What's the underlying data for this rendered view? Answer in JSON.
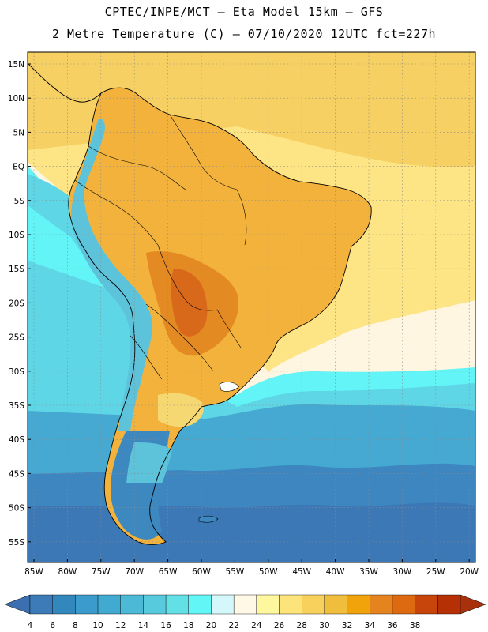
{
  "title_line1": "CPTEC/INPE/MCT –  Eta Model 15km – GFS",
  "title_line2": "2 Metre Temperature (C) – 07/10/2020 12UTC fct=227h",
  "lat_labels": [
    "15N",
    "10N",
    "5N",
    "EQ",
    "5S",
    "10S",
    "15S",
    "20S",
    "25S",
    "30S",
    "35S",
    "40S",
    "45S",
    "50S",
    "55S"
  ],
  "lon_labels": [
    "85W",
    "80W",
    "75W",
    "70W",
    "65W",
    "60W",
    "55W",
    "50W",
    "45W",
    "40W",
    "35W",
    "30W",
    "25W",
    "20W"
  ],
  "colorbar": {
    "levels": [
      "4",
      "6",
      "8",
      "10",
      "12",
      "14",
      "16",
      "18",
      "20",
      "22",
      "24",
      "26",
      "28",
      "30",
      "32",
      "34",
      "36",
      "38"
    ],
    "colors": [
      "#3d7ab8",
      "#3288bd",
      "#3a9bcc",
      "#41aad0",
      "#4cbad6",
      "#57cade",
      "#63e0e6",
      "#62f6f6",
      "#d4f7fb",
      "#fff8e6",
      "#fff79e",
      "#fde47a",
      "#f8d15d",
      "#f1bd3c",
      "#f0a30b",
      "#e5841f",
      "#dd6911",
      "#c7440b",
      "#b53005"
    ],
    "under_color": "#3c6fb0",
    "over_color": "#a8300a"
  },
  "map_colors": {
    "ocean_deep_south": "#3b78b5",
    "ocean_south": "#3d86c0",
    "ocean_mid": "#45a9d2",
    "ocean_cyan": "#5fd6e6",
    "ocean_bright": "#62f4f6",
    "ocean_pale": "#fff6e2",
    "ocean_yellow": "#fde585",
    "ocean_warm": "#f6d062",
    "land_orange": "#f2b23c",
    "land_hot": "#e48a22",
    "land_very_hot": "#d8681a",
    "andes_cold": "#5cc3db",
    "patagonia": "#3d88bf",
    "pampa": "#f6d872"
  }
}
